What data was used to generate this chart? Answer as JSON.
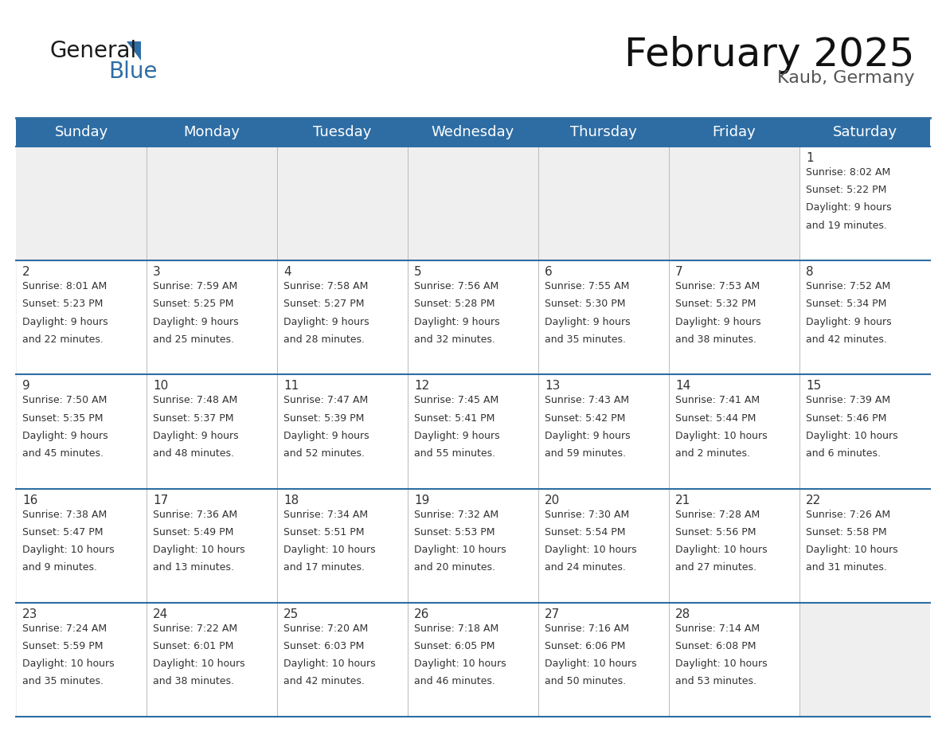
{
  "title": "February 2025",
  "subtitle": "Kaub, Germany",
  "days_of_week": [
    "Sunday",
    "Monday",
    "Tuesday",
    "Wednesday",
    "Thursday",
    "Friday",
    "Saturday"
  ],
  "header_bg": "#2E6DA4",
  "header_text": "#FFFFFF",
  "cell_bg_light": "#EFEFEF",
  "text_color": "#333333",
  "border_color": "#2E6DA4",
  "divider_color": "#BBBBBB",
  "calendar_data": [
    [
      null,
      null,
      null,
      null,
      null,
      null,
      {
        "day": 1,
        "sunrise": "8:02 AM",
        "sunset": "5:22 PM",
        "daylight_line1": "Daylight: 9 hours",
        "daylight_line2": "and 19 minutes."
      }
    ],
    [
      {
        "day": 2,
        "sunrise": "8:01 AM",
        "sunset": "5:23 PM",
        "daylight_line1": "Daylight: 9 hours",
        "daylight_line2": "and 22 minutes."
      },
      {
        "day": 3,
        "sunrise": "7:59 AM",
        "sunset": "5:25 PM",
        "daylight_line1": "Daylight: 9 hours",
        "daylight_line2": "and 25 minutes."
      },
      {
        "day": 4,
        "sunrise": "7:58 AM",
        "sunset": "5:27 PM",
        "daylight_line1": "Daylight: 9 hours",
        "daylight_line2": "and 28 minutes."
      },
      {
        "day": 5,
        "sunrise": "7:56 AM",
        "sunset": "5:28 PM",
        "daylight_line1": "Daylight: 9 hours",
        "daylight_line2": "and 32 minutes."
      },
      {
        "day": 6,
        "sunrise": "7:55 AM",
        "sunset": "5:30 PM",
        "daylight_line1": "Daylight: 9 hours",
        "daylight_line2": "and 35 minutes."
      },
      {
        "day": 7,
        "sunrise": "7:53 AM",
        "sunset": "5:32 PM",
        "daylight_line1": "Daylight: 9 hours",
        "daylight_line2": "and 38 minutes."
      },
      {
        "day": 8,
        "sunrise": "7:52 AM",
        "sunset": "5:34 PM",
        "daylight_line1": "Daylight: 9 hours",
        "daylight_line2": "and 42 minutes."
      }
    ],
    [
      {
        "day": 9,
        "sunrise": "7:50 AM",
        "sunset": "5:35 PM",
        "daylight_line1": "Daylight: 9 hours",
        "daylight_line2": "and 45 minutes."
      },
      {
        "day": 10,
        "sunrise": "7:48 AM",
        "sunset": "5:37 PM",
        "daylight_line1": "Daylight: 9 hours",
        "daylight_line2": "and 48 minutes."
      },
      {
        "day": 11,
        "sunrise": "7:47 AM",
        "sunset": "5:39 PM",
        "daylight_line1": "Daylight: 9 hours",
        "daylight_line2": "and 52 minutes."
      },
      {
        "day": 12,
        "sunrise": "7:45 AM",
        "sunset": "5:41 PM",
        "daylight_line1": "Daylight: 9 hours",
        "daylight_line2": "and 55 minutes."
      },
      {
        "day": 13,
        "sunrise": "7:43 AM",
        "sunset": "5:42 PM",
        "daylight_line1": "Daylight: 9 hours",
        "daylight_line2": "and 59 minutes."
      },
      {
        "day": 14,
        "sunrise": "7:41 AM",
        "sunset": "5:44 PM",
        "daylight_line1": "Daylight: 10 hours",
        "daylight_line2": "and 2 minutes."
      },
      {
        "day": 15,
        "sunrise": "7:39 AM",
        "sunset": "5:46 PM",
        "daylight_line1": "Daylight: 10 hours",
        "daylight_line2": "and 6 minutes."
      }
    ],
    [
      {
        "day": 16,
        "sunrise": "7:38 AM",
        "sunset": "5:47 PM",
        "daylight_line1": "Daylight: 10 hours",
        "daylight_line2": "and 9 minutes."
      },
      {
        "day": 17,
        "sunrise": "7:36 AM",
        "sunset": "5:49 PM",
        "daylight_line1": "Daylight: 10 hours",
        "daylight_line2": "and 13 minutes."
      },
      {
        "day": 18,
        "sunrise": "7:34 AM",
        "sunset": "5:51 PM",
        "daylight_line1": "Daylight: 10 hours",
        "daylight_line2": "and 17 minutes."
      },
      {
        "day": 19,
        "sunrise": "7:32 AM",
        "sunset": "5:53 PM",
        "daylight_line1": "Daylight: 10 hours",
        "daylight_line2": "and 20 minutes."
      },
      {
        "day": 20,
        "sunrise": "7:30 AM",
        "sunset": "5:54 PM",
        "daylight_line1": "Daylight: 10 hours",
        "daylight_line2": "and 24 minutes."
      },
      {
        "day": 21,
        "sunrise": "7:28 AM",
        "sunset": "5:56 PM",
        "daylight_line1": "Daylight: 10 hours",
        "daylight_line2": "and 27 minutes."
      },
      {
        "day": 22,
        "sunrise": "7:26 AM",
        "sunset": "5:58 PM",
        "daylight_line1": "Daylight: 10 hours",
        "daylight_line2": "and 31 minutes."
      }
    ],
    [
      {
        "day": 23,
        "sunrise": "7:24 AM",
        "sunset": "5:59 PM",
        "daylight_line1": "Daylight: 10 hours",
        "daylight_line2": "and 35 minutes."
      },
      {
        "day": 24,
        "sunrise": "7:22 AM",
        "sunset": "6:01 PM",
        "daylight_line1": "Daylight: 10 hours",
        "daylight_line2": "and 38 minutes."
      },
      {
        "day": 25,
        "sunrise": "7:20 AM",
        "sunset": "6:03 PM",
        "daylight_line1": "Daylight: 10 hours",
        "daylight_line2": "and 42 minutes."
      },
      {
        "day": 26,
        "sunrise": "7:18 AM",
        "sunset": "6:05 PM",
        "daylight_line1": "Daylight: 10 hours",
        "daylight_line2": "and 46 minutes."
      },
      {
        "day": 27,
        "sunrise": "7:16 AM",
        "sunset": "6:06 PM",
        "daylight_line1": "Daylight: 10 hours",
        "daylight_line2": "and 50 minutes."
      },
      {
        "day": 28,
        "sunrise": "7:14 AM",
        "sunset": "6:08 PM",
        "daylight_line1": "Daylight: 10 hours",
        "daylight_line2": "and 53 minutes."
      },
      null
    ]
  ],
  "logo_text1": "General",
  "logo_text2": "Blue",
  "logo_color1": "#1a1a1a",
  "logo_color2": "#2E6DA4",
  "title_fontsize": 36,
  "subtitle_fontsize": 16,
  "header_fontsize": 13,
  "day_num_fontsize": 11,
  "cell_fontsize": 9
}
